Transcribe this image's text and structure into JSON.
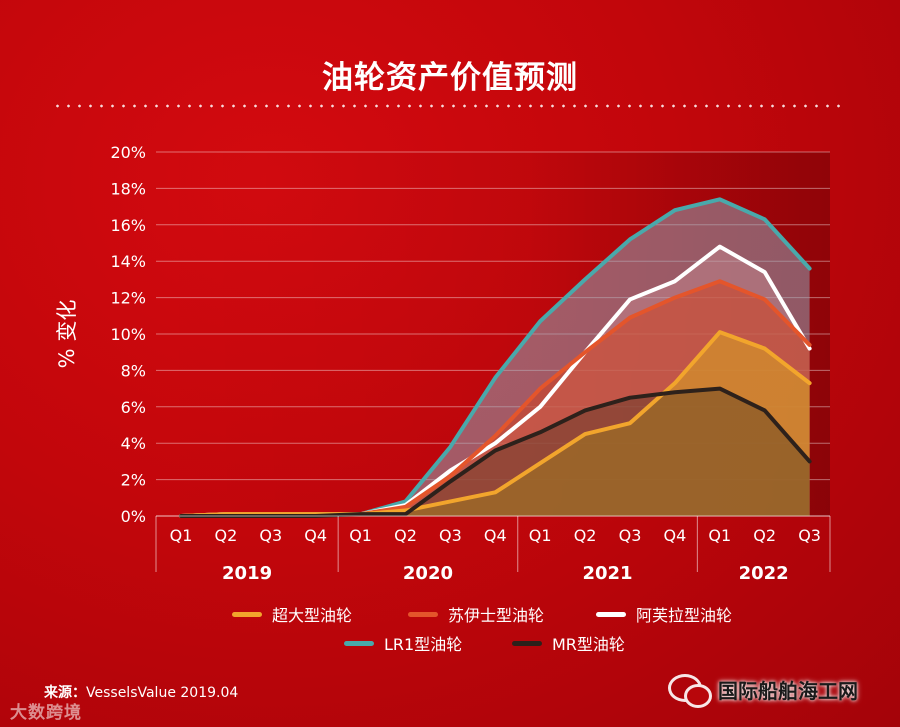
{
  "title": "油轮资产价值预测",
  "source": {
    "label": "来源：",
    "text": "VesselsValue 2019.04"
  },
  "watermark_left": "大数跨境",
  "watermark_right": "国际船舶海工网",
  "colors": {
    "vlcc": "#f2a52c",
    "suezmax": "#e4552b",
    "aframax": "#ffffff",
    "lr1": "#49a9ab",
    "mr": "#2d211b",
    "grid": "rgba(255,255,255,0.42)"
  },
  "chart_data": {
    "type": "line",
    "title": "油轮资产价值预测",
    "ylabel": "% 变化",
    "xlabel": "",
    "ylim": [
      0,
      20
    ],
    "y_ticks": [
      "0%",
      "2%",
      "4%",
      "6%",
      "8%",
      "10%",
      "12%",
      "14%",
      "16%",
      "18%",
      "20%"
    ],
    "x": [
      "Q1",
      "Q2",
      "Q3",
      "Q4",
      "Q1",
      "Q2",
      "Q3",
      "Q4",
      "Q1",
      "Q2",
      "Q3",
      "Q4",
      "Q1",
      "Q2",
      "Q3"
    ],
    "years": [
      {
        "label": "2019",
        "quarters": 4
      },
      {
        "label": "2020",
        "quarters": 4
      },
      {
        "label": "2021",
        "quarters": 4
      },
      {
        "label": "2022",
        "quarters": 3
      }
    ],
    "series": [
      {
        "key": "lr1",
        "name": "LR1型油轮",
        "values": [
          0,
          0.1,
          0.1,
          0.1,
          0.1,
          0.8,
          3.8,
          7.6,
          10.7,
          13.0,
          15.2,
          16.8,
          17.4,
          16.3,
          13.6
        ]
      },
      {
        "key": "aframax",
        "name": "阿芙拉型油轮",
        "values": [
          0,
          0.1,
          0.1,
          0.1,
          0.1,
          0.6,
          2.5,
          4.0,
          6.0,
          9.0,
          11.9,
          12.9,
          14.8,
          13.4,
          9.2
        ]
      },
      {
        "key": "suezmax",
        "name": "苏伊士型油轮",
        "values": [
          0,
          0.1,
          0.1,
          0.1,
          0.1,
          0.5,
          2.2,
          4.4,
          7.0,
          9.0,
          10.9,
          12.0,
          12.9,
          11.9,
          9.4
        ]
      },
      {
        "key": "vlcc",
        "name": "超大型油轮",
        "values": [
          0,
          0.1,
          0.1,
          0.1,
          0.1,
          0.3,
          0.8,
          1.3,
          2.9,
          4.5,
          5.1,
          7.3,
          10.1,
          9.2,
          7.3
        ]
      },
      {
        "key": "mr",
        "name": "MR型油轮",
        "values": [
          0,
          0,
          0,
          0,
          0.1,
          0.1,
          1.9,
          3.6,
          4.6,
          5.8,
          6.5,
          6.8,
          7.0,
          5.8,
          3.0
        ]
      }
    ],
    "legend": [
      {
        "key": "vlcc",
        "name": "超大型油轮"
      },
      {
        "key": "suezmax",
        "name": "苏伊士型油轮"
      },
      {
        "key": "aframax",
        "name": "阿芙拉型油轮"
      },
      {
        "key": "lr1",
        "name": "LR1型油轮"
      },
      {
        "key": "mr",
        "name": "MR型油轮"
      }
    ]
  }
}
